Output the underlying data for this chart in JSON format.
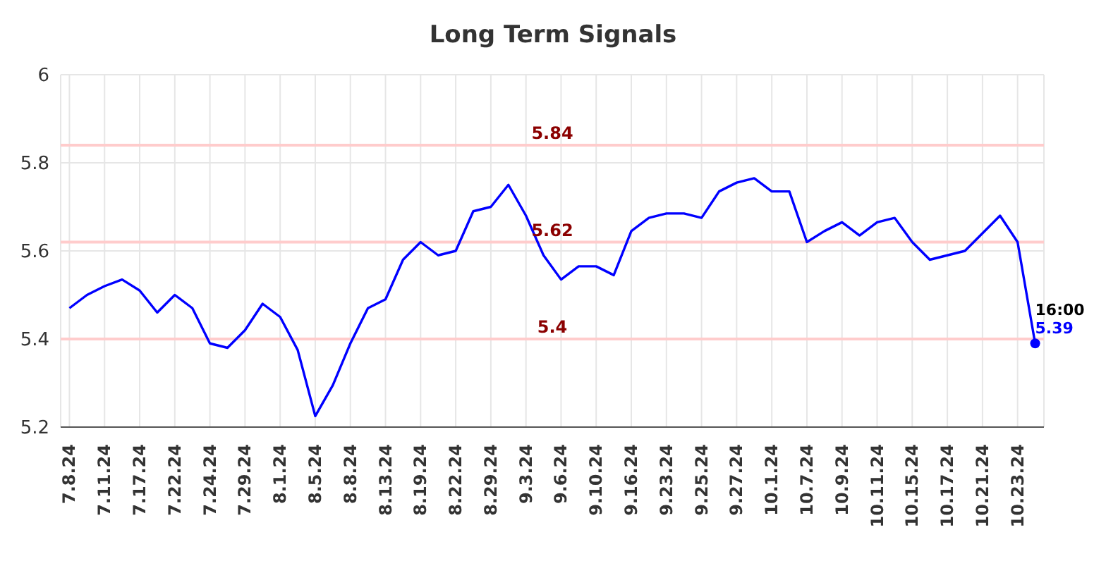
{
  "chart_data": {
    "type": "line",
    "title": "Long Term Signals",
    "categories": [
      "7.8.24",
      null,
      "7.11.24",
      null,
      "7.17.24",
      null,
      "7.22.24",
      null,
      "7.24.24",
      null,
      "7.29.24",
      null,
      "8.1.24",
      null,
      "8.5.24",
      null,
      "8.8.24",
      null,
      "8.13.24",
      null,
      "8.19.24",
      null,
      "8.22.24",
      null,
      "8.29.24",
      null,
      "9.3.24",
      null,
      "9.6.24",
      null,
      "9.10.24",
      null,
      "9.16.24",
      null,
      "9.23.24",
      null,
      "9.25.24",
      null,
      "9.27.24",
      null,
      "10.1.24",
      null,
      "10.7.24",
      null,
      "10.9.24",
      null,
      "10.11.24",
      null,
      "10.15.24",
      null,
      "10.17.24",
      null,
      "10.21.24",
      null,
      "10.23.24",
      null
    ],
    "series": [
      {
        "color": "#0000ff",
        "values": [
          5.47,
          5.5,
          5.52,
          5.535,
          5.51,
          5.46,
          5.5,
          5.47,
          5.39,
          5.38,
          5.42,
          5.48,
          5.45,
          5.375,
          5.225,
          5.295,
          5.39,
          5.47,
          5.49,
          5.58,
          5.62,
          5.59,
          5.6,
          5.69,
          5.7,
          5.75,
          5.68,
          5.59,
          5.535,
          5.565,
          5.565,
          5.545,
          5.645,
          5.675,
          5.685,
          5.685,
          5.675,
          5.735,
          5.755,
          5.765,
          5.735,
          5.735,
          5.62,
          5.645,
          5.665,
          5.635,
          5.665,
          5.675,
          5.62,
          5.58,
          5.59,
          5.6,
          5.64,
          5.68,
          5.62,
          5.39
        ],
        "value_labels": [
          null,
          null,
          null,
          null,
          null,
          null,
          null,
          null,
          null,
          null,
          null,
          null,
          null,
          null,
          null,
          null,
          null,
          null,
          null,
          null,
          null,
          null,
          null,
          null,
          null,
          null,
          null,
          null,
          null,
          null,
          null,
          null,
          null,
          null,
          null,
          null,
          null,
          null,
          null,
          null,
          null,
          null,
          null,
          null,
          null,
          null,
          null,
          null,
          null,
          null,
          null,
          null,
          null,
          null,
          null,
          "5.39"
        ]
      }
    ],
    "ylim": [
      5.2,
      6
    ],
    "yticks": [
      5.2,
      5.4,
      5.6,
      5.8,
      6
    ],
    "grid": true,
    "legend": false,
    "line_style": "solid",
    "ref_lines": [
      {
        "axis": "y",
        "value": 5.84,
        "label": "5.84",
        "color": "#ffcccc"
      },
      {
        "axis": "y",
        "value": 5.62,
        "label": "5.62",
        "color": "#ffcccc"
      },
      {
        "axis": "y",
        "value": 5.4,
        "label": "5.4",
        "color": "#ffcccc"
      }
    ],
    "annotations": [
      "16:00"
    ]
  }
}
